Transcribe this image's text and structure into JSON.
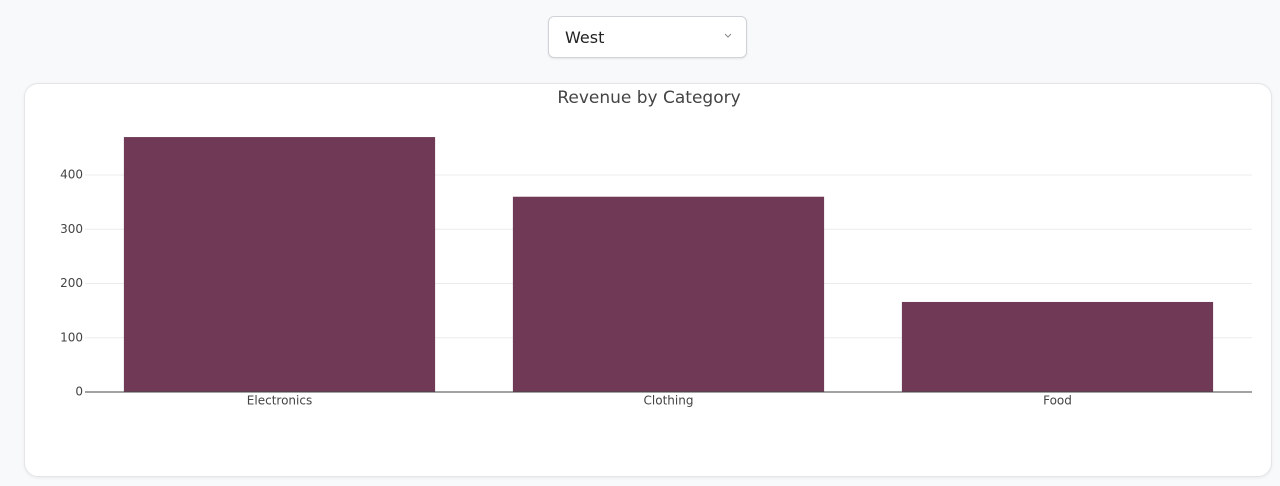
{
  "filter": {
    "selected": "West"
  },
  "chart_data": {
    "type": "bar",
    "title": "Revenue by Category",
    "categories": [
      "Electronics",
      "Clothing",
      "Food"
    ],
    "values": [
      470,
      360,
      166
    ],
    "color": "#703a56",
    "ylim": [
      0,
      495
    ],
    "yticks": [
      0,
      100,
      200,
      300,
      400
    ],
    "grid": true
  }
}
